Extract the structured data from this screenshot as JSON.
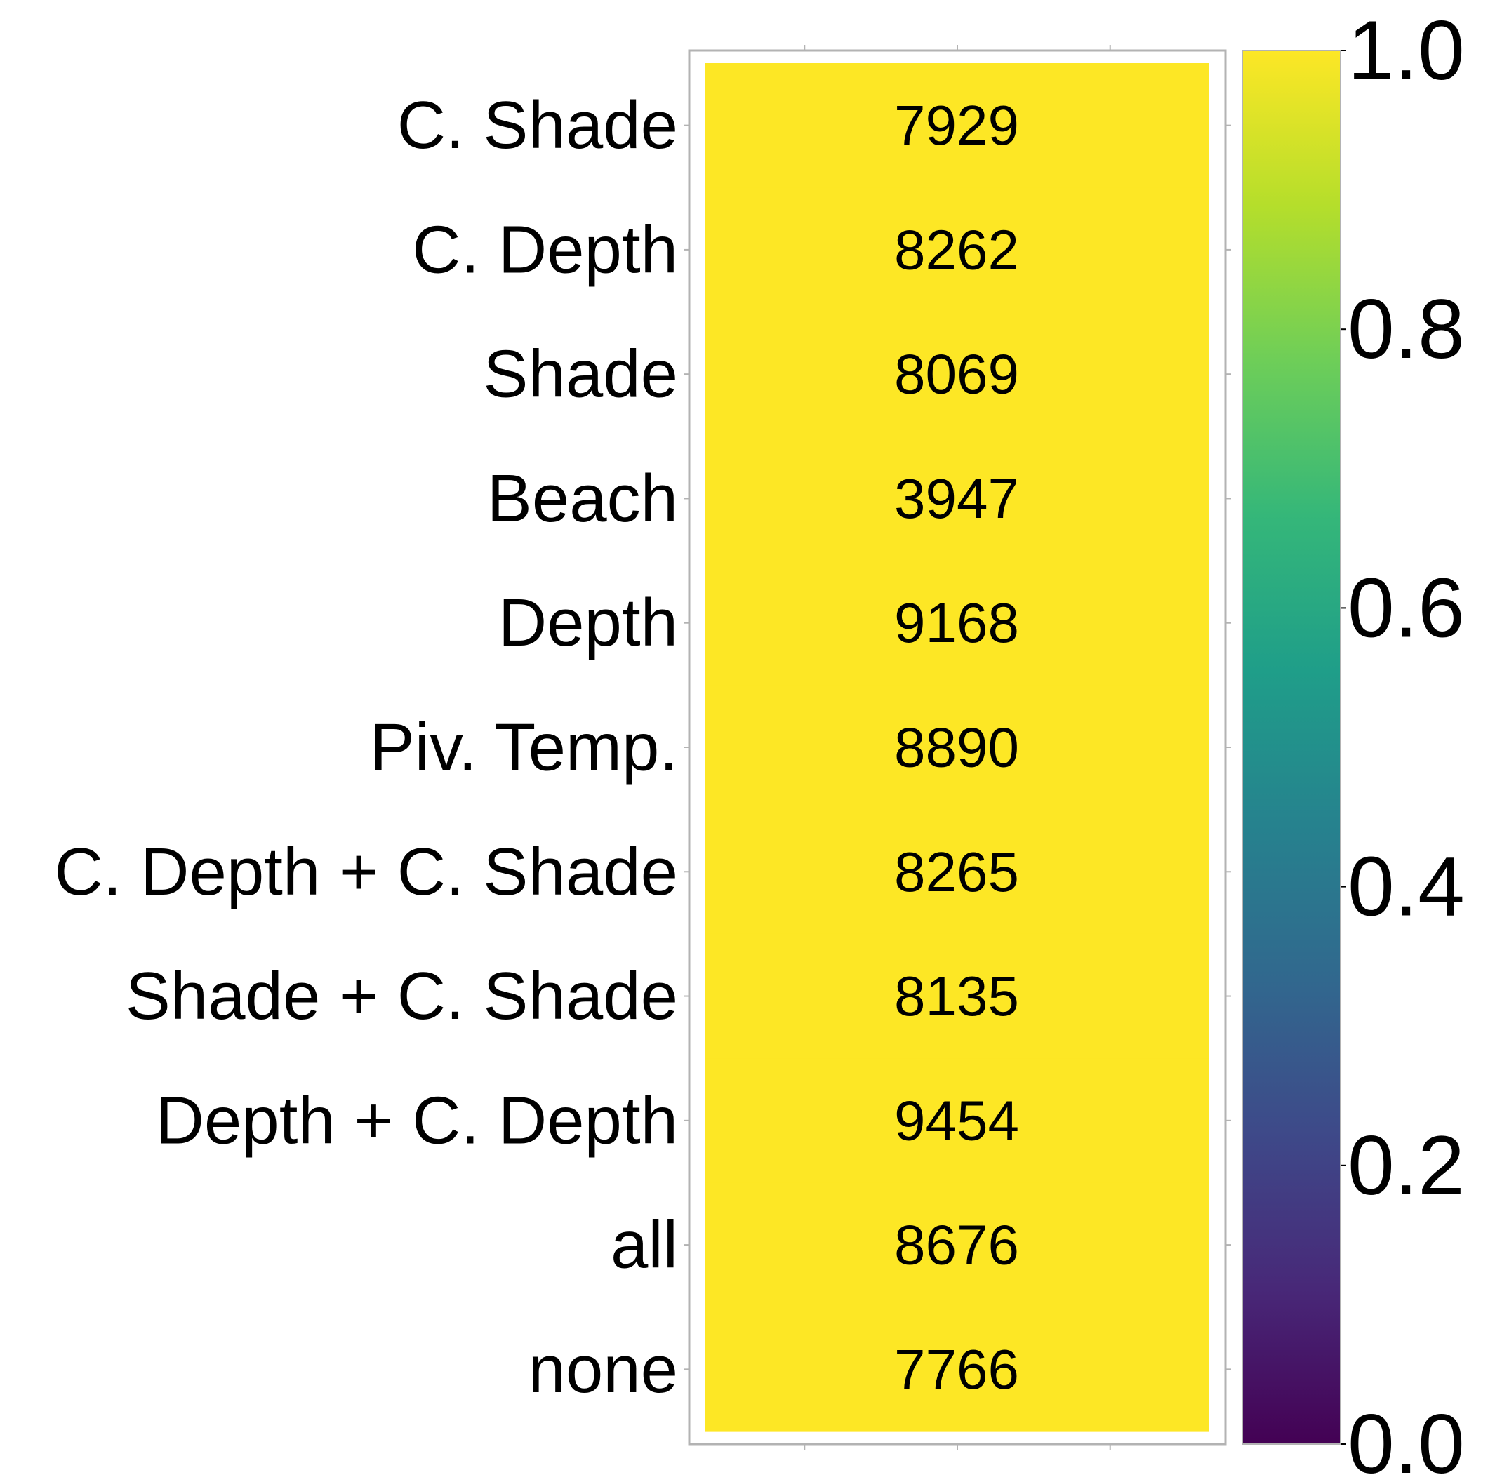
{
  "chart_data": {
    "type": "heatmap",
    "title": "",
    "xlabel": "",
    "ylabel": "",
    "rows": [
      "C. Shade",
      "C. Depth",
      "Shade",
      "Beach",
      "Depth",
      "Piv. Temp.",
      "C. Depth + C. Shade",
      "Shade + C. Shade",
      "Depth + C. Depth",
      "all",
      "none"
    ],
    "cell_labels": [
      "7929",
      "8262",
      "8069",
      "3947",
      "9168",
      "8890",
      "8265",
      "8135",
      "9454",
      "8676",
      "7766"
    ],
    "color_values": [
      1.0,
      1.0,
      1.0,
      1.0,
      1.0,
      1.0,
      1.0,
      1.0,
      1.0,
      1.0,
      1.0
    ],
    "colorbar": {
      "range": [
        0.0,
        1.0
      ],
      "ticks": [
        "0.0",
        "0.2",
        "0.4",
        "0.6",
        "0.8",
        "1.0"
      ],
      "colormap": "viridis"
    },
    "colors": {
      "viridis_stops": [
        "#440154",
        "#482878",
        "#3e4989",
        "#31688e",
        "#26828e",
        "#1f9e89",
        "#35b779",
        "#6ece58",
        "#b5de2b",
        "#fde725"
      ],
      "frame": "#b3b3b3"
    }
  }
}
